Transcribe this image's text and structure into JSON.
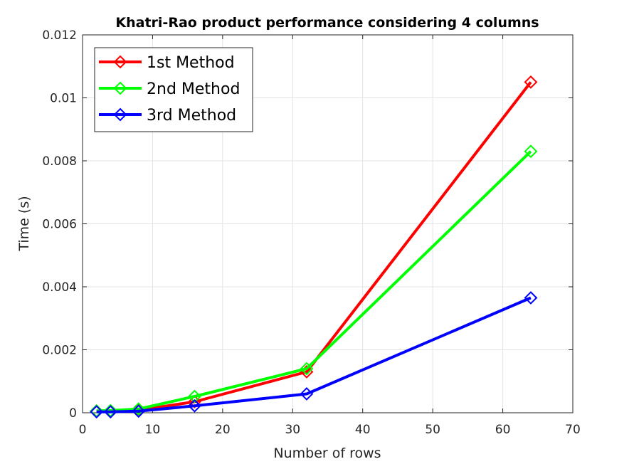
{
  "chart_data": {
    "type": "line",
    "title": "Khatri-Rao product performance considering 4 columns",
    "xlabel": "Number of rows",
    "ylabel": "Time (s)",
    "xlim": [
      0,
      70
    ],
    "ylim": [
      0,
      0.012
    ],
    "x_ticks": [
      "0",
      "10",
      "20",
      "30",
      "40",
      "50",
      "60",
      "70"
    ],
    "y_ticks": [
      "0",
      "0.002",
      "0.004",
      "0.006",
      "0.008",
      "0.01",
      "0.012"
    ],
    "grid": true,
    "legend_location": "top-left",
    "x": [
      2,
      4,
      8,
      16,
      32,
      64
    ],
    "series": [
      {
        "name": "1st Method",
        "color": "#ff0000",
        "marker": "diamond",
        "values": [
          5e-05,
          5e-05,
          8e-05,
          0.00035,
          0.0013,
          0.0105
        ]
      },
      {
        "name": "2nd Method",
        "color": "#00ff00",
        "marker": "diamond",
        "values": [
          6e-05,
          7e-05,
          0.00012,
          0.00052,
          0.0014,
          0.0083
        ]
      },
      {
        "name": "3rd Method",
        "color": "#0000ff",
        "marker": "diamond",
        "values": [
          3e-05,
          3e-05,
          5e-05,
          0.00022,
          0.0006,
          0.00365
        ]
      }
    ]
  }
}
